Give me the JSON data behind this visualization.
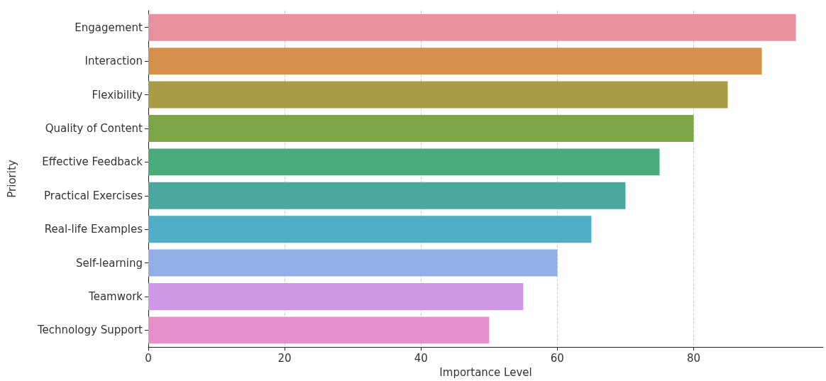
{
  "chart_data": {
    "type": "bar",
    "orientation": "horizontal",
    "xlabel": "Importance Level",
    "ylabel": "Priority",
    "categories": [
      "Engagement",
      "Interaction",
      "Flexibility",
      "Quality of Content",
      "Effective Feedback",
      "Practical Exercises",
      "Real-life Examples",
      "Self-learning",
      "Teamwork",
      "Technology Support"
    ],
    "values": [
      95,
      90,
      85,
      80,
      75,
      70,
      65,
      60,
      55,
      50
    ],
    "colors": [
      "#e8919c",
      "#d5904c",
      "#aa9c45",
      "#7ca646",
      "#49ab7c",
      "#4aa8a0",
      "#51aec7",
      "#93aee6",
      "#cf98e6",
      "#e78fca"
    ],
    "xlim": [
      0,
      99
    ],
    "xticks": [
      0,
      20,
      40,
      60,
      80
    ],
    "grid": "x"
  }
}
